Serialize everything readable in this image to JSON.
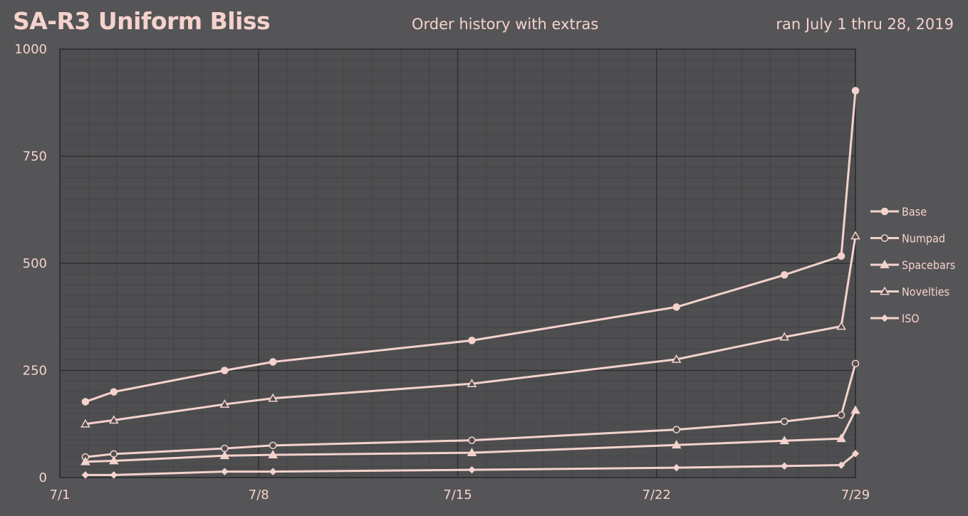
{
  "header": {
    "title": "SA-R3 Uniform Bliss",
    "subtitle": "Order history with extras",
    "date_range": "ran July 1 thru 28, 2019"
  },
  "colors": {
    "background": "#555557",
    "plot_background": "#4e4e50",
    "line": "#f5d2cc",
    "grid_major": "#2f2f31",
    "grid_minor": "#444446"
  },
  "chart_data": {
    "type": "line",
    "title": "",
    "xlabel": "",
    "ylabel": "",
    "xlim": [
      0,
      28
    ],
    "ylim": [
      0,
      1000
    ],
    "y_ticks": [
      0,
      250,
      500,
      750,
      1000
    ],
    "x_ticks": [
      {
        "x": 0,
        "label": "7/1"
      },
      {
        "x": 7,
        "label": "7/8"
      },
      {
        "x": 14,
        "label": "7/15"
      },
      {
        "x": 21,
        "label": "7/22"
      },
      {
        "x": 28,
        "label": "7/29"
      }
    ],
    "grid": true,
    "legend_position": "right",
    "x": [
      0.9,
      1.9,
      5.8,
      7.5,
      14.5,
      21.7,
      25.5,
      27.5,
      28.0
    ],
    "series": [
      {
        "name": "Base",
        "marker": "circle-filled",
        "values": [
          177,
          200,
          250,
          270,
          320,
          398,
          473,
          517,
          903
        ]
      },
      {
        "name": "Numpad",
        "marker": "circle-open",
        "values": [
          48,
          55,
          68,
          75,
          87,
          112,
          131,
          146,
          266
        ]
      },
      {
        "name": "Spacebars",
        "marker": "triangle-filled",
        "values": [
          37,
          39,
          51,
          53,
          58,
          76,
          86,
          91,
          157
        ]
      },
      {
        "name": "Novelties",
        "marker": "triangle-open",
        "values": [
          125,
          134,
          171,
          185,
          219,
          276,
          328,
          353,
          564
        ]
      },
      {
        "name": "ISO",
        "marker": "diamond-filled",
        "values": [
          6,
          6,
          14,
          14,
          18,
          23,
          27,
          29,
          56
        ]
      }
    ]
  }
}
